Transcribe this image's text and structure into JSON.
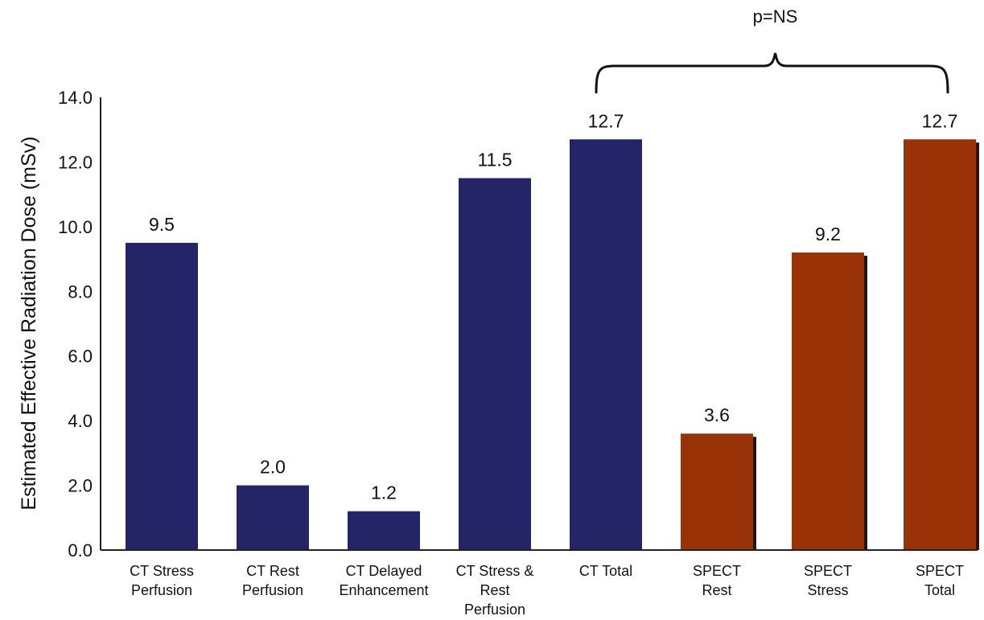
{
  "chart_data": {
    "type": "bar",
    "title": "",
    "xlabel": "",
    "ylabel": "Estimated Effective Radiation Dose (mSv)",
    "ylim": [
      0,
      14
    ],
    "yticks": [
      "0.0",
      "2.0",
      "4.0",
      "6.0",
      "8.0",
      "10.0",
      "12.0",
      "14.0"
    ],
    "grid": false,
    "categories": [
      [
        "CT Stress",
        "Perfusion"
      ],
      [
        "CT Rest",
        "Perfusion"
      ],
      [
        "CT Delayed",
        "Enhancement"
      ],
      [
        "CT Stress &",
        "Rest",
        "Perfusion"
      ],
      [
        "CT Total"
      ],
      [
        "SPECT",
        "Rest"
      ],
      [
        "SPECT",
        "Stress"
      ],
      [
        "SPECT",
        "Total"
      ]
    ],
    "values": [
      9.5,
      2.0,
      1.2,
      11.5,
      12.7,
      3.6,
      9.2,
      12.7
    ],
    "data_labels": [
      "9.5",
      "2.0",
      "1.2",
      "11.5",
      "12.7",
      "3.6",
      "9.2",
      "12.7"
    ],
    "bar_colors": [
      "#232566",
      "#232566",
      "#232566",
      "#232566",
      "#232566",
      "#9a3208",
      "#9a3208",
      "#9a3208"
    ],
    "annotation": {
      "text": "p=NS",
      "from_index": 4,
      "to_index": 7
    }
  }
}
